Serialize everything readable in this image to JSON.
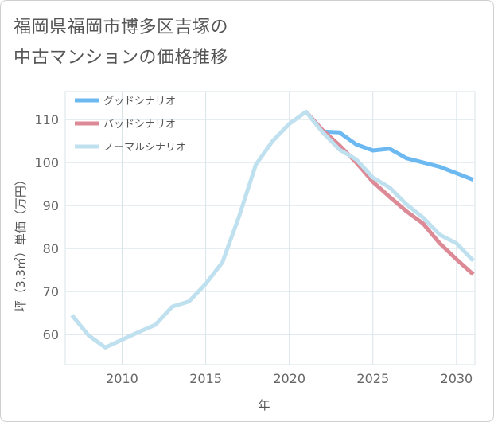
{
  "header": {
    "title_line1": "福岡県福岡市博多区吉塚の",
    "title_line2": "中古マンションの価格推移"
  },
  "chart_data": {
    "type": "line",
    "xlabel": "年",
    "ylabel": "坪（3.3㎡）単価（万円）",
    "xlim": [
      2006.6,
      2031.1
    ],
    "ylim": [
      53,
      116.5
    ],
    "xticks": [
      2010,
      2015,
      2020,
      2025,
      2030
    ],
    "yticks": [
      60,
      70,
      80,
      90,
      100,
      110
    ],
    "grid": true,
    "legend_position": "top-left",
    "series": [
      {
        "name": "グッドシナリオ",
        "color": "#6cb8f0",
        "x": [
          2021,
          2022,
          2023,
          2024,
          2025,
          2026,
          2027,
          2028,
          2029,
          2030,
          2031
        ],
        "y": [
          111.8,
          107.2,
          107.0,
          104.2,
          102.8,
          103.2,
          101.0,
          100.0,
          99.0,
          97.5,
          96.0
        ]
      },
      {
        "name": "バッドシナリオ",
        "color": "#dc8a96",
        "x": [
          2021,
          2022,
          2023,
          2024,
          2025,
          2026,
          2027,
          2028,
          2029,
          2030,
          2031
        ],
        "y": [
          111.8,
          107.5,
          104.0,
          100.0,
          95.5,
          92.0,
          88.7,
          85.8,
          81.2,
          77.5,
          74.0
        ]
      },
      {
        "name": "ノーマルシナリオ",
        "color": "#bfe0ee",
        "x": [
          2007,
          2008,
          2009,
          2010,
          2011,
          2012,
          2013,
          2014,
          2015,
          2016,
          2017,
          2018,
          2019,
          2020,
          2021,
          2022,
          2023,
          2024,
          2025,
          2026,
          2027,
          2028,
          2029,
          2030,
          2031
        ],
        "y": [
          64.5,
          59.8,
          57.0,
          58.8,
          60.6,
          62.3,
          66.5,
          67.7,
          71.8,
          76.8,
          87.5,
          99.5,
          105.0,
          109.0,
          111.8,
          107.0,
          103.0,
          100.7,
          96.5,
          94.2,
          90.3,
          87.2,
          83.2,
          81.2,
          77.2
        ]
      }
    ]
  }
}
